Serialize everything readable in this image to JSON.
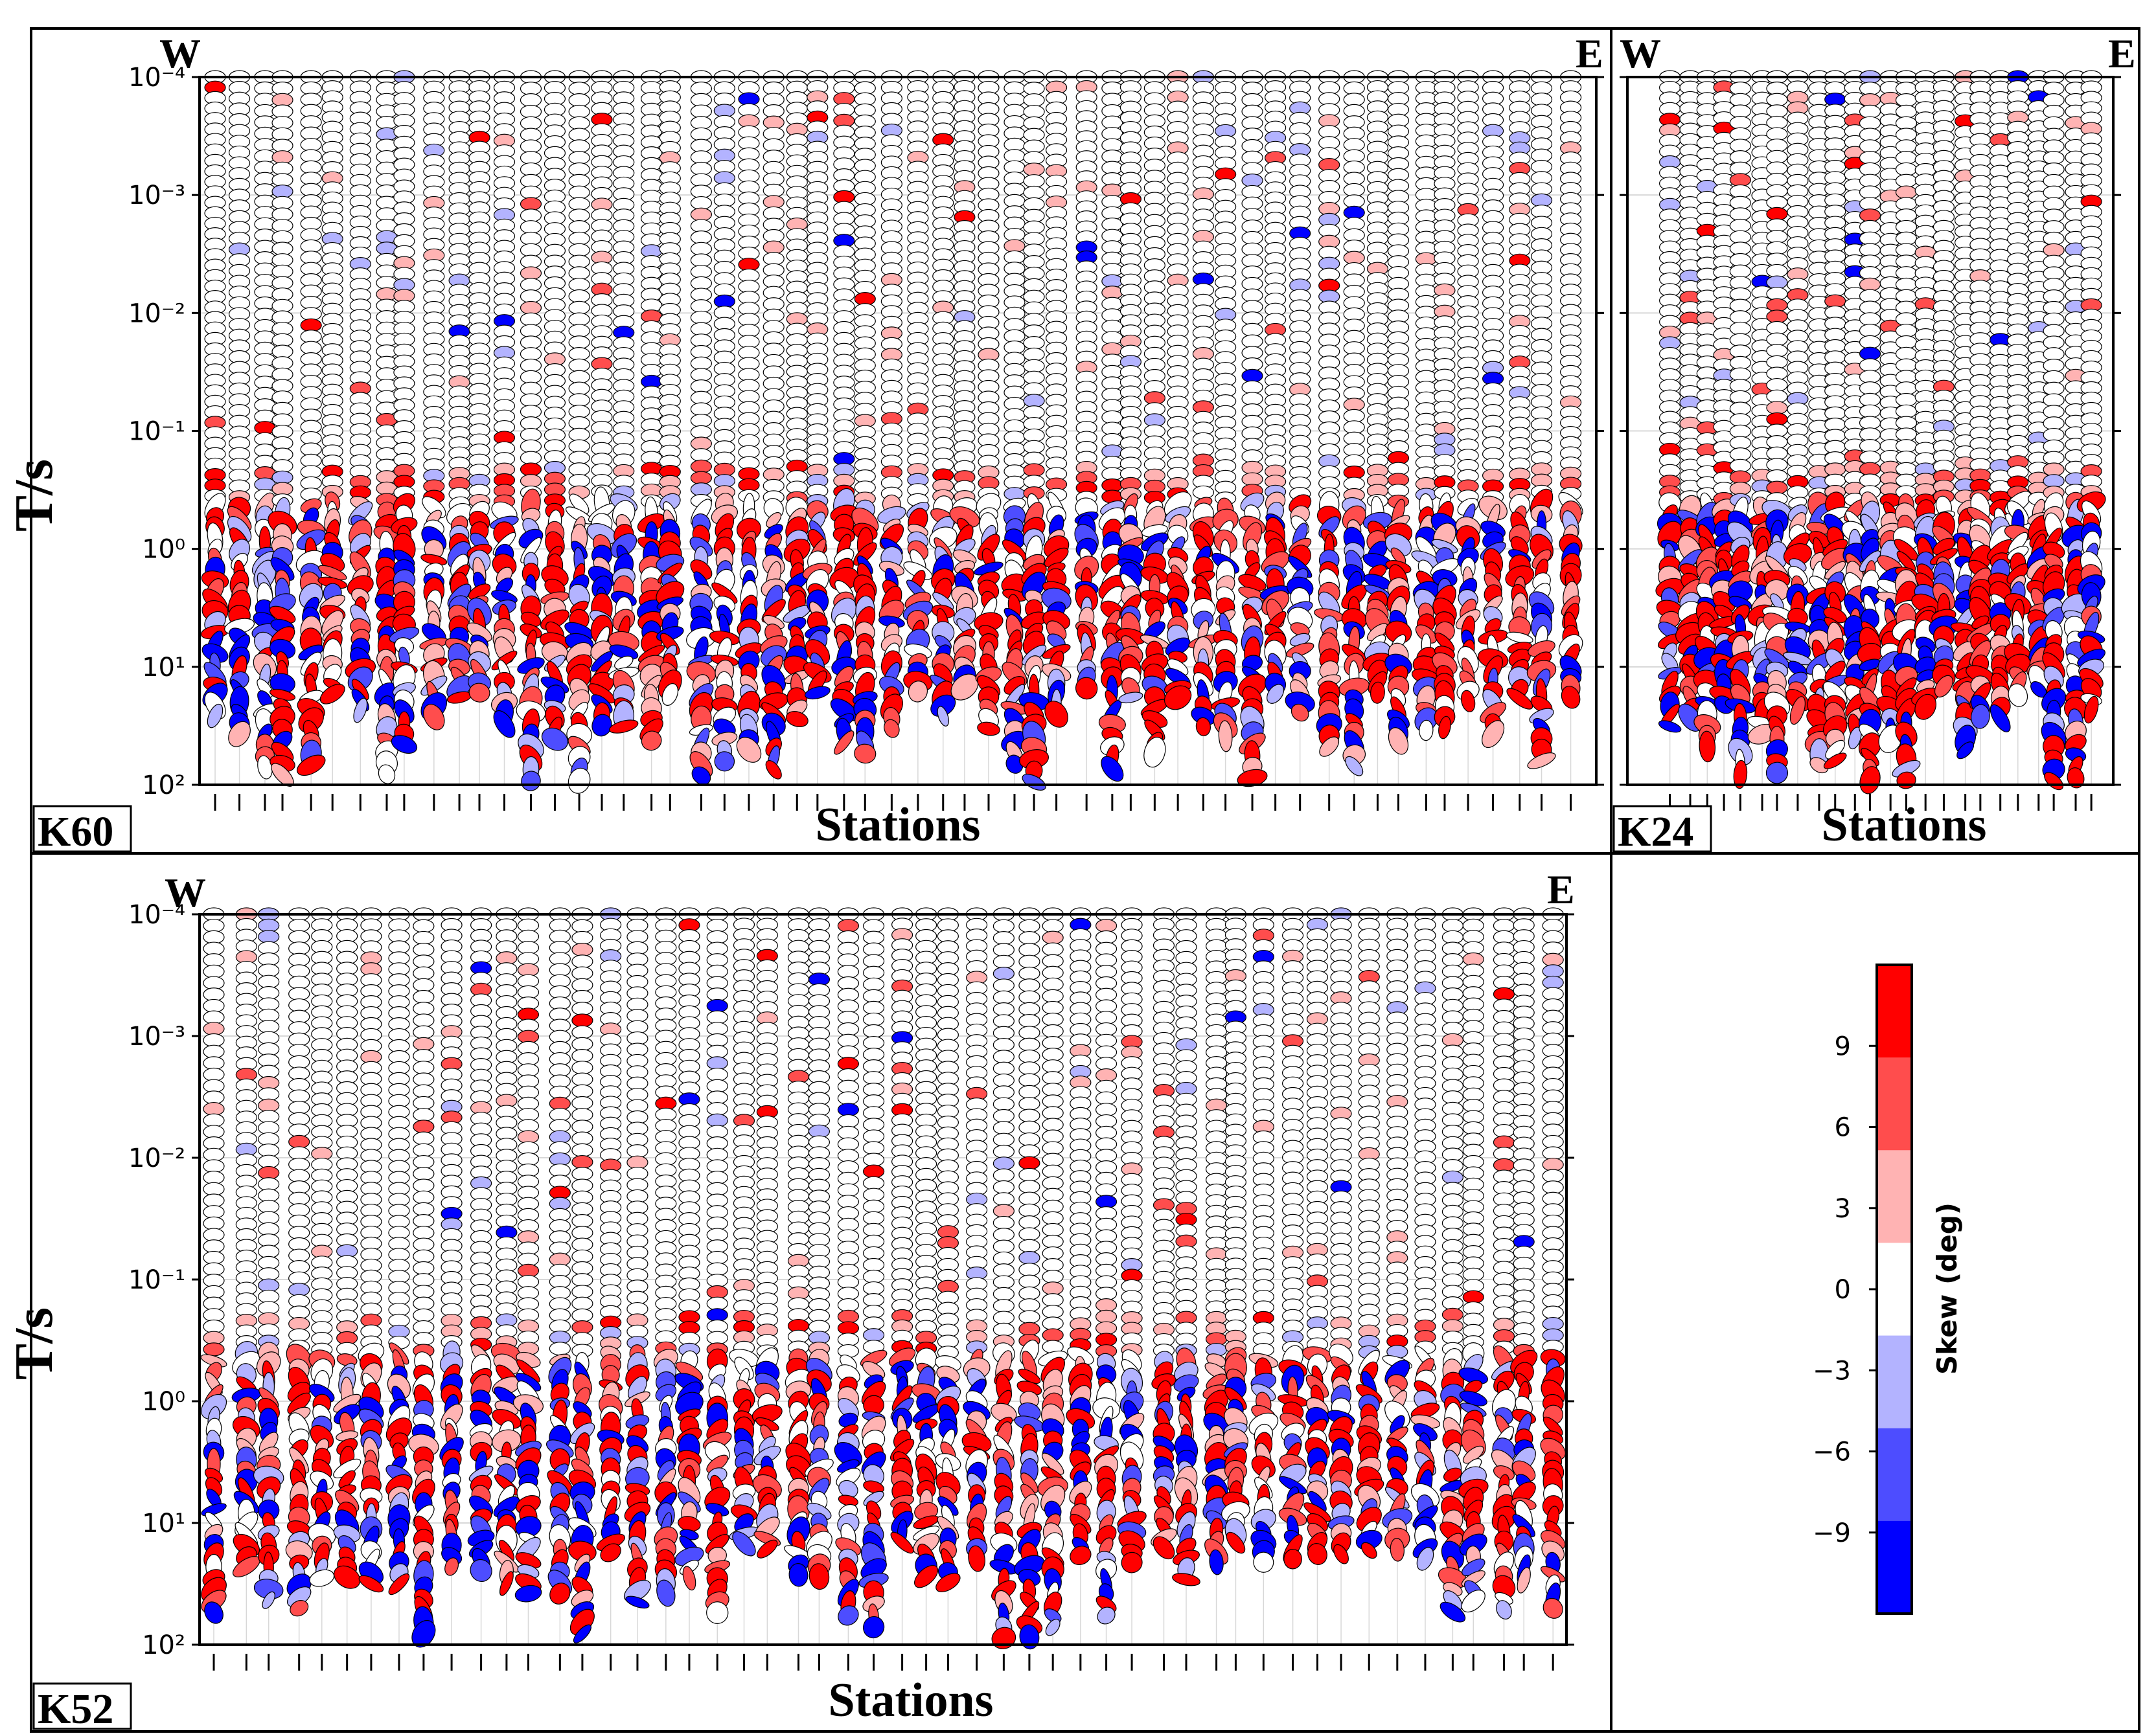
{
  "colors": {
    "frame": "#000000",
    "grid": "#d8d8d8",
    "neutral_fill": "#ffffff",
    "colorbar_bins": [
      "#0000ff",
      "#4d4dff",
      "#b3b3ff",
      "#ffffff",
      "#ffb3b3",
      "#ff4d4d",
      "#ff0000"
    ]
  },
  "chart_data": [
    {
      "type": "scatter",
      "panel_label": "K60",
      "xlabel": "Stations",
      "ylabel": "T/s",
      "west_label": "W",
      "east_label": "E",
      "yscale": "log",
      "ylim": [
        0.0001,
        100
      ],
      "ytick_labels": [
        "10⁻⁴",
        "10⁻³",
        "10⁻²",
        "10⁻¹",
        "10⁰",
        "10¹",
        "10²"
      ],
      "grid": true,
      "station_count": 57,
      "marker": "phase-tensor ellipse colored by skew (deg)"
    },
    {
      "type": "scatter",
      "panel_label": "K24",
      "xlabel": "Stations",
      "ylabel": "",
      "west_label": "W",
      "east_label": "E",
      "yscale": "log",
      "ylim": [
        0.0001,
        100
      ],
      "grid": true,
      "station_count": 24,
      "marker": "phase-tensor ellipse colored by skew (deg)"
    },
    {
      "type": "scatter",
      "panel_label": "K52",
      "xlabel": "Stations",
      "ylabel": "T/s",
      "west_label": "W",
      "east_label": "E",
      "yscale": "log",
      "ylim": [
        0.0001,
        100
      ],
      "ytick_labels": [
        "10⁻⁴",
        "10⁻³",
        "10⁻²",
        "10⁻¹",
        "10⁰",
        "10¹",
        "10²"
      ],
      "grid": true,
      "station_count": 52,
      "marker": "phase-tensor ellipse colored by skew (deg)"
    }
  ],
  "colorbar": {
    "label": "Skew (deg)",
    "tick_labels": [
      "9",
      "6",
      "3",
      "0",
      "−3",
      "−6",
      "−9"
    ],
    "tick_values": [
      9,
      6,
      3,
      0,
      -3,
      -6,
      -9
    ],
    "range": [
      -12,
      12
    ],
    "bins": 7
  }
}
